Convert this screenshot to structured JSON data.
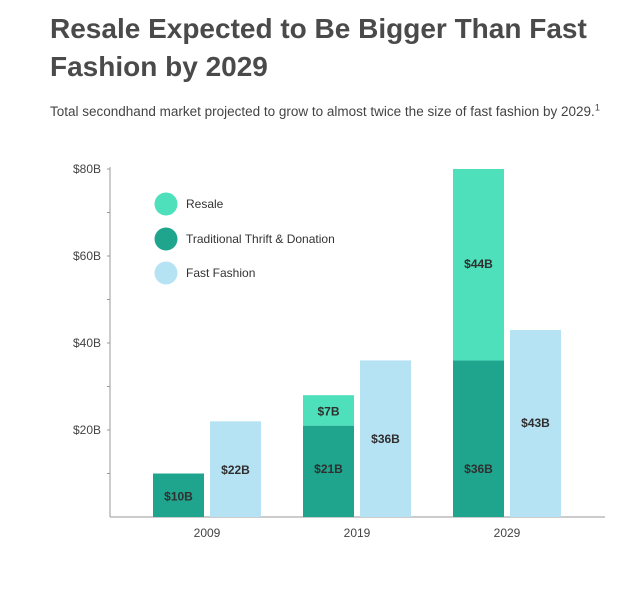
{
  "header": {
    "title": "Resale Expected to Be Bigger Than Fast Fashion by 2029",
    "subtitle": "Total secondhand market projected to grow to almost twice the size of fast fashion by 2029.",
    "footnote_marker": "1"
  },
  "chart_data": {
    "type": "bar",
    "title": "Resale Expected to Be Bigger Than Fast Fashion by 2029",
    "subtitle": "Total secondhand market projected to grow to almost twice the size of fast fashion by 2029.",
    "categories": [
      "2009",
      "2019",
      "2029"
    ],
    "series": [
      {
        "name": "Resale",
        "values": [
          0,
          7,
          44
        ],
        "labels": [
          "",
          "$7B",
          "$44B"
        ],
        "color": "#4de0bb",
        "stack": "secondhand"
      },
      {
        "name": "Traditional Thrift & Donation",
        "values": [
          10,
          21,
          36
        ],
        "labels": [
          "$10B",
          "$21B",
          "$36B"
        ],
        "color": "#1fa58e",
        "stack": "secondhand"
      },
      {
        "name": "Fast Fashion",
        "values": [
          22,
          36,
          43
        ],
        "labels": [
          "$22B",
          "$36B",
          "$43B"
        ],
        "color": "#b6e3f3",
        "stack": "fast"
      }
    ],
    "ylim": [
      0,
      80
    ],
    "yticks": [
      20,
      40,
      60,
      80
    ],
    "ytick_labels": [
      "$20B",
      "$40B",
      "$60B",
      "$80B"
    ],
    "xlabel": "",
    "ylabel": "",
    "legend_position": "top-left",
    "grid": false
  }
}
